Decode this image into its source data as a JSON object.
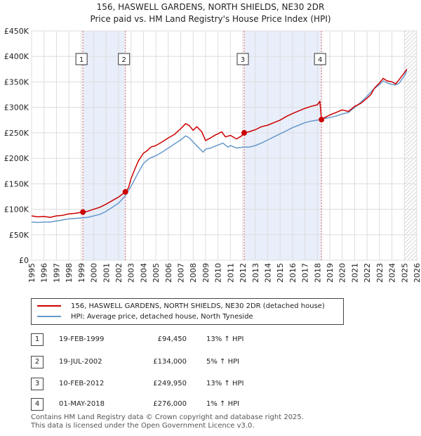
{
  "chart_data": {
    "type": "line",
    "title": "156, HASWELL GARDENS, NORTH SHIELDS, NE30 2DR",
    "subtitle": "Price paid vs. HM Land Registry's House Price Index (HPI)",
    "xlim": [
      1995,
      2026
    ],
    "ylim": [
      0,
      450000
    ],
    "ytick_values": [
      0,
      50000,
      100000,
      150000,
      200000,
      250000,
      300000,
      350000,
      400000,
      450000
    ],
    "ytick_labels": [
      "£0",
      "£50K",
      "£100K",
      "£150K",
      "£200K",
      "£250K",
      "£300K",
      "£350K",
      "£400K",
      "£450K"
    ],
    "xtick_labels": [
      "1995",
      "1996",
      "1997",
      "1998",
      "1999",
      "2000",
      "2001",
      "2002",
      "2003",
      "2004",
      "2005",
      "2006",
      "2007",
      "2008",
      "2009",
      "2010",
      "2011",
      "2012",
      "2013",
      "2014",
      "2015",
      "2016",
      "2017",
      "2018",
      "2019",
      "2020",
      "2021",
      "2022",
      "2023",
      "2024",
      "2025",
      "2026"
    ],
    "grid": true,
    "series": [
      {
        "name": "156, HASWELL GARDENS, NORTH SHIELDS, NE30 2DR (detached house)",
        "color": "#cc0000",
        "x": [
          1995.0,
          1995.5,
          1996.0,
          1996.5,
          1997.0,
          1997.5,
          1998.0,
          1998.5,
          1999.13,
          1999.5,
          2000.0,
          2000.5,
          2001.0,
          2001.5,
          2002.0,
          2002.55,
          2002.8,
          2003.0,
          2003.3,
          2003.6,
          2004.0,
          2004.3,
          2004.6,
          2005.0,
          2005.5,
          2006.0,
          2006.5,
          2007.0,
          2007.4,
          2007.7,
          2008.0,
          2008.3,
          2008.7,
          2009.0,
          2009.4,
          2009.8,
          2010.0,
          2010.3,
          2010.6,
          2011.0,
          2011.5,
          2011.9,
          2012.11,
          2012.5,
          2013.0,
          2013.5,
          2014.0,
          2014.5,
          2015.0,
          2015.5,
          2016.0,
          2016.5,
          2017.0,
          2017.5,
          2018.0,
          2018.2,
          2018.33,
          2018.6,
          2019.0,
          2019.5,
          2020.0,
          2020.5,
          2021.0,
          2021.5,
          2022.0,
          2022.3,
          2022.6,
          2023.0,
          2023.3,
          2023.6,
          2024.0,
          2024.3,
          2024.6,
          2025.0,
          2025.2
        ],
        "y": [
          87000,
          85000,
          86000,
          84000,
          87000,
          88000,
          91000,
          92000,
          94450,
          96000,
          100000,
          104000,
          110000,
          117000,
          124000,
          134000,
          142000,
          160000,
          178000,
          195000,
          210000,
          215000,
          222000,
          225000,
          232000,
          240000,
          247000,
          258000,
          268000,
          264000,
          255000,
          262000,
          252000,
          235000,
          240000,
          246000,
          248000,
          252000,
          242000,
          245000,
          238000,
          244000,
          249950,
          252000,
          256000,
          262000,
          265000,
          270000,
          275000,
          282000,
          288000,
          293000,
          298000,
          302000,
          305000,
          312000,
          276000,
          280000,
          285000,
          290000,
          295000,
          292000,
          302000,
          308000,
          318000,
          325000,
          338000,
          348000,
          357000,
          352000,
          350000,
          346000,
          355000,
          368000,
          375000
        ]
      },
      {
        "name": "HPI: Average price, detached house, North Tyneside",
        "color": "#6699cc",
        "x": [
          1995.0,
          1995.5,
          1996.0,
          1996.5,
          1997.0,
          1997.5,
          1998.0,
          1998.5,
          1999.0,
          1999.5,
          2000.0,
          2000.5,
          2001.0,
          2001.5,
          2002.0,
          2002.5,
          2003.0,
          2003.5,
          2004.0,
          2004.5,
          2005.0,
          2005.5,
          2006.0,
          2006.5,
          2007.0,
          2007.4,
          2007.7,
          2008.0,
          2008.4,
          2008.8,
          2009.0,
          2009.4,
          2009.8,
          2010.0,
          2010.4,
          2010.8,
          2011.0,
          2011.5,
          2012.0,
          2012.5,
          2013.0,
          2013.5,
          2014.0,
          2014.5,
          2015.0,
          2015.5,
          2016.0,
          2016.5,
          2017.0,
          2017.5,
          2018.0,
          2018.5,
          2019.0,
          2019.5,
          2020.0,
          2020.5,
          2021.0,
          2021.5,
          2022.0,
          2022.5,
          2023.0,
          2023.3,
          2023.6,
          2024.0,
          2024.3,
          2024.6,
          2025.0,
          2025.2
        ],
        "y": [
          75000,
          74000,
          75000,
          75000,
          77000,
          79000,
          81000,
          82000,
          83000,
          84000,
          87000,
          90000,
          96000,
          104000,
          112000,
          125000,
          145000,
          168000,
          190000,
          200000,
          205000,
          212000,
          220000,
          228000,
          236000,
          244000,
          240000,
          232000,
          222000,
          212000,
          218000,
          220000,
          224000,
          226000,
          230000,
          222000,
          225000,
          220000,
          222000,
          222000,
          225000,
          230000,
          236000,
          242000,
          248000,
          254000,
          260000,
          265000,
          270000,
          273000,
          275000,
          278000,
          280000,
          283000,
          287000,
          290000,
          300000,
          310000,
          322000,
          335000,
          345000,
          352000,
          348000,
          345000,
          344000,
          348000,
          362000,
          372000
        ]
      }
    ],
    "sales": [
      {
        "num": "1",
        "x": 1999.13,
        "y": 94450
      },
      {
        "num": "2",
        "x": 2002.55,
        "y": 134000
      },
      {
        "num": "3",
        "x": 2012.11,
        "y": 249950
      },
      {
        "num": "4",
        "x": 2018.33,
        "y": 276000
      }
    ],
    "shaded_ranges": [
      [
        1999.13,
        2002.55
      ],
      [
        2012.11,
        2018.33
      ]
    ],
    "hatch_from": 2025.0
  },
  "legend": {
    "items": [
      {
        "label": "156, HASWELL GARDENS, NORTH SHIELDS, NE30 2DR (detached house)",
        "color": "#cc0000"
      },
      {
        "label": "HPI: Average price, detached house, North Tyneside",
        "color": "#6699cc"
      }
    ]
  },
  "transactions": [
    {
      "num": "1",
      "date": "19-FEB-1999",
      "price": "£94,450",
      "hpi": "13% ↑ HPI"
    },
    {
      "num": "2",
      "date": "19-JUL-2002",
      "price": "£134,000",
      "hpi": "5% ↑ HPI"
    },
    {
      "num": "3",
      "date": "10-FEB-2012",
      "price": "£249,950",
      "hpi": "13% ↑ HPI"
    },
    {
      "num": "4",
      "date": "01-MAY-2018",
      "price": "£276,000",
      "hpi": "1% ↑ HPI"
    }
  ],
  "footer": {
    "line1": "Contains HM Land Registry data © Crown copyright and database right 2025.",
    "line2": "This data is licensed under the Open Government Licence v3.0."
  }
}
